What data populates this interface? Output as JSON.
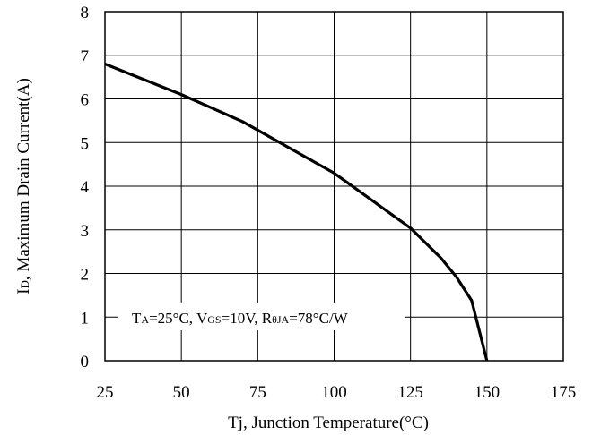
{
  "chart_data": {
    "type": "line",
    "title": "",
    "xlabel": "Tj, Junction Temperature(°C)",
    "ylabel_main": "I",
    "ylabel_sub": "D",
    "ylabel_rest": ", Maximum Drain Current(A)",
    "xlim": [
      25,
      175
    ],
    "ylim": [
      0,
      8
    ],
    "grid": true,
    "x_ticks": [
      "25",
      "50",
      "75",
      "100",
      "125",
      "150",
      "175"
    ],
    "y_ticks": [
      "0",
      "1",
      "2",
      "3",
      "4",
      "5",
      "6",
      "7",
      "8"
    ],
    "series": [
      {
        "x": [
          25,
          50,
          70,
          100,
          125,
          135,
          140,
          145,
          150
        ],
        "y": [
          6.8,
          6.1,
          5.48,
          4.3,
          3.04,
          2.35,
          1.92,
          1.38,
          0
        ]
      }
    ],
    "annotation": {
      "ta_main": "T",
      "ta_sub": "A",
      "ta_rest": "=25°C, V",
      "vgs_sub": "GS",
      "vgs_rest": "=10V, R",
      "r_sub": "θJA",
      "r_rest": "=78°C/W"
    }
  }
}
